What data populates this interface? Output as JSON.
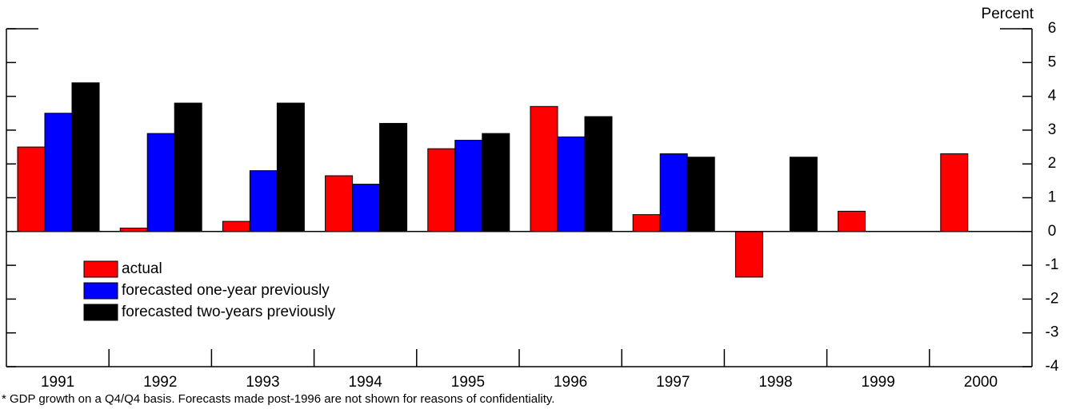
{
  "chart_data": {
    "type": "bar",
    "y_label": "Percent",
    "footnote": "* GDP growth on a Q4/Q4 basis.  Forecasts made post-1996 are not shown for reasons of confidentiality.",
    "categories": [
      "1991",
      "1992",
      "1993",
      "1994",
      "1995",
      "1996",
      "1997",
      "1998",
      "1999",
      "2000"
    ],
    "series": [
      {
        "name": "actual",
        "color": "#ff0000",
        "values": [
          2.5,
          0.1,
          0.3,
          1.65,
          2.45,
          3.7,
          0.5,
          -1.35,
          0.6,
          2.3
        ]
      },
      {
        "name": "forecasted one-year previously",
        "color": "#0000ff",
        "values": [
          3.5,
          2.9,
          1.8,
          1.4,
          2.7,
          2.8,
          2.3,
          null,
          null,
          null
        ]
      },
      {
        "name": "forecasted two-years previously",
        "color": "#000000",
        "values": [
          4.4,
          3.8,
          3.8,
          3.2,
          2.9,
          3.4,
          2.2,
          2.2,
          null,
          null
        ]
      }
    ],
    "ylim": [
      -4,
      6
    ],
    "yticks": [
      -4,
      -3,
      -2,
      -1,
      0,
      1,
      2,
      3,
      4,
      5,
      6
    ],
    "legend": "lower-left"
  }
}
